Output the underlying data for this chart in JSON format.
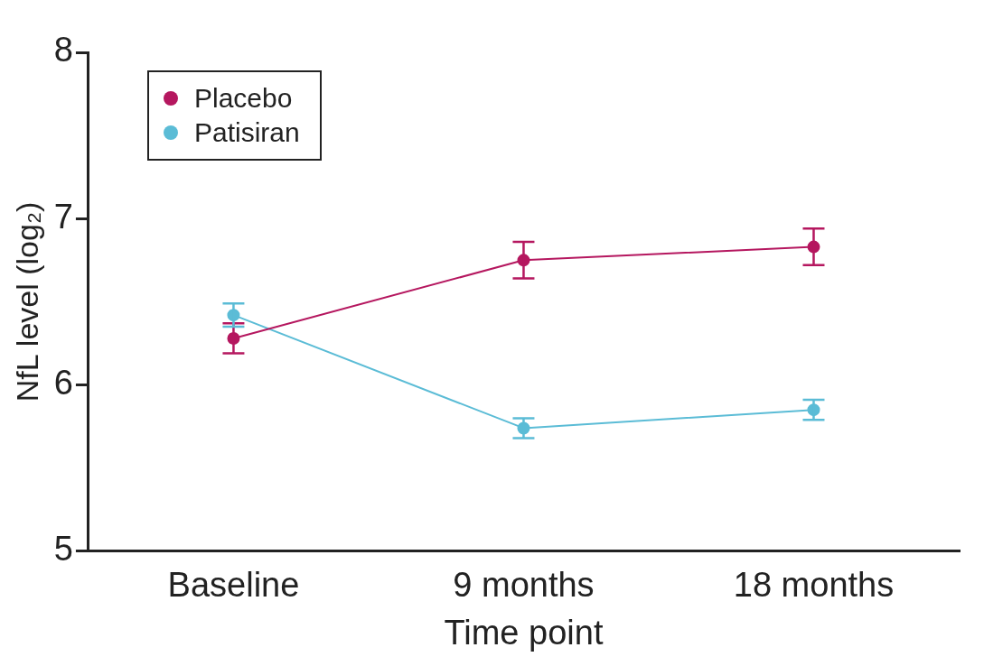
{
  "chart_data": {
    "type": "line",
    "xlabel": "Time point",
    "ylabel": "NfL level (log₂)",
    "categories": [
      "Baseline",
      "9 months",
      "18 months"
    ],
    "series": [
      {
        "name": "Placebo",
        "color": "#b5175f",
        "values": [
          6.28,
          6.75,
          6.83
        ],
        "errors": [
          0.09,
          0.11,
          0.11
        ]
      },
      {
        "name": "Patisiran",
        "color": "#5bbcd6",
        "values": [
          6.42,
          5.74,
          5.85
        ],
        "errors": [
          0.07,
          0.06,
          0.06
        ]
      }
    ],
    "ylim": [
      5,
      8
    ],
    "yticks": [
      5,
      6,
      7,
      8
    ],
    "grid": false,
    "legend": "top left",
    "marker": "circle",
    "line_style": "solid"
  }
}
